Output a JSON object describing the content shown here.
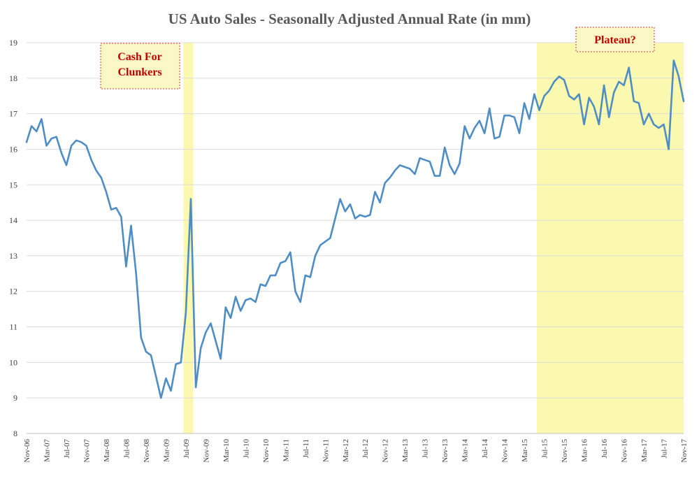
{
  "chart_data": {
    "type": "line",
    "title": "US Auto Sales - Seasonally Adjusted Annual Rate (in mm)",
    "xlabel": "",
    "ylabel": "",
    "ylim": [
      8,
      19
    ],
    "yticks": [
      "8",
      "9",
      "10",
      "11",
      "12",
      "13",
      "14",
      "15",
      "16",
      "17",
      "18",
      "19"
    ],
    "grid": true,
    "legend": "none",
    "x_tick_labels": [
      "Nov-06",
      "Mar-07",
      "Jul-07",
      "Nov-07",
      "Mar-08",
      "Jul-08",
      "Nov-08",
      "Mar-09",
      "Jul-09",
      "Nov-09",
      "Mar-10",
      "Jul-10",
      "Nov-10",
      "Mar-11",
      "Jul-11",
      "Nov-11",
      "Mar-12",
      "Jul-12",
      "Nov-12",
      "Mar-13",
      "Jul-13",
      "Nov-13",
      "Mar-14",
      "Jul-14",
      "Nov-14",
      "Mar-15",
      "Jul-15",
      "Nov-15",
      "Mar-16",
      "Jul-16",
      "Nov-16",
      "Mar-17",
      "Jul-17",
      "Nov-17"
    ],
    "series": [
      {
        "color": "#4f8dc5",
        "x": [
          "Nov-06",
          "Dec-06",
          "Jan-07",
          "Feb-07",
          "Mar-07",
          "Apr-07",
          "May-07",
          "Jun-07",
          "Jul-07",
          "Aug-07",
          "Sep-07",
          "Oct-07",
          "Nov-07",
          "Dec-07",
          "Jan-08",
          "Feb-08",
          "Mar-08",
          "Apr-08",
          "May-08",
          "Jun-08",
          "Jul-08",
          "Aug-08",
          "Sep-08",
          "Oct-08",
          "Nov-08",
          "Dec-08",
          "Jan-09",
          "Feb-09",
          "Mar-09",
          "Apr-09",
          "May-09",
          "Jun-09",
          "Jul-09",
          "Aug-09",
          "Sep-09",
          "Oct-09",
          "Nov-09",
          "Dec-09",
          "Jan-10",
          "Feb-10",
          "Mar-10",
          "Apr-10",
          "May-10",
          "Jun-10",
          "Jul-10",
          "Aug-10",
          "Sep-10",
          "Oct-10",
          "Nov-10",
          "Dec-10",
          "Jan-11",
          "Feb-11",
          "Mar-11",
          "Apr-11",
          "May-11",
          "Jun-11",
          "Jul-11",
          "Aug-11",
          "Sep-11",
          "Oct-11",
          "Nov-11",
          "Dec-11",
          "Jan-12",
          "Feb-12",
          "Mar-12",
          "Apr-12",
          "May-12",
          "Jun-12",
          "Jul-12",
          "Aug-12",
          "Sep-12",
          "Oct-12",
          "Nov-12",
          "Dec-12",
          "Jan-13",
          "Feb-13",
          "Mar-13",
          "Apr-13",
          "May-13",
          "Jun-13",
          "Jul-13",
          "Aug-13",
          "Sep-13",
          "Oct-13",
          "Nov-13",
          "Dec-13",
          "Jan-14",
          "Feb-14",
          "Mar-14",
          "Apr-14",
          "May-14",
          "Jun-14",
          "Jul-14",
          "Aug-14",
          "Sep-14",
          "Oct-14",
          "Nov-14",
          "Dec-14",
          "Jan-15",
          "Feb-15",
          "Mar-15",
          "Apr-15",
          "May-15",
          "Jun-15",
          "Jul-15",
          "Aug-15",
          "Sep-15",
          "Oct-15",
          "Nov-15",
          "Dec-15",
          "Jan-16",
          "Feb-16",
          "Mar-16",
          "Apr-16",
          "May-16",
          "Jun-16",
          "Jul-16",
          "Aug-16",
          "Sep-16",
          "Oct-16",
          "Nov-16",
          "Dec-16",
          "Jan-17",
          "Feb-17",
          "Mar-17",
          "Apr-17",
          "May-17",
          "Jun-17",
          "Jul-17",
          "Aug-17",
          "Sep-17",
          "Oct-17",
          "Nov-17"
        ],
        "values": [
          16.2,
          16.65,
          16.5,
          16.85,
          16.1,
          16.3,
          16.35,
          15.9,
          15.55,
          16.1,
          16.25,
          16.2,
          16.1,
          15.7,
          15.4,
          15.2,
          14.8,
          14.3,
          14.35,
          14.1,
          12.7,
          13.85,
          12.5,
          10.7,
          10.3,
          10.2,
          9.6,
          9.0,
          9.55,
          9.2,
          9.95,
          10.0,
          11.4,
          14.6,
          9.3,
          10.4,
          10.85,
          11.1,
          10.6,
          10.1,
          11.55,
          11.25,
          11.85,
          11.45,
          11.75,
          11.8,
          11.7,
          12.2,
          12.15,
          12.45,
          12.45,
          12.8,
          12.85,
          13.1,
          12.0,
          11.7,
          12.45,
          12.4,
          13.0,
          13.3,
          13.4,
          13.5,
          14.05,
          14.6,
          14.25,
          14.45,
          14.05,
          14.15,
          14.1,
          14.15,
          14.8,
          14.5,
          15.05,
          15.2,
          15.4,
          15.55,
          15.5,
          15.45,
          15.3,
          15.75,
          15.7,
          15.65,
          15.25,
          15.25,
          16.05,
          15.55,
          15.3,
          15.6,
          16.65,
          16.3,
          16.6,
          16.8,
          16.45,
          17.15,
          16.3,
          16.35,
          16.95,
          16.95,
          16.9,
          16.45,
          17.3,
          16.85,
          17.55,
          17.1,
          17.5,
          17.65,
          17.9,
          18.05,
          17.95,
          17.5,
          17.4,
          17.55,
          16.7,
          17.45,
          17.2,
          16.7,
          17.8,
          16.9,
          17.6,
          17.9,
          17.8,
          18.3,
          17.35,
          17.3,
          16.7,
          17.0,
          16.7,
          16.6,
          16.7,
          16.0,
          18.5,
          18.05,
          17.35
        ]
      }
    ],
    "highlight_color": "#fbf9b0",
    "highlights": [
      {
        "from": "Jul-09",
        "to": "Aug-09"
      },
      {
        "from": "Jun-15",
        "to": "Nov-17"
      }
    ],
    "annotations": [
      {
        "label": "Cash For Clunkers"
      },
      {
        "label": "Plateau?"
      }
    ]
  }
}
